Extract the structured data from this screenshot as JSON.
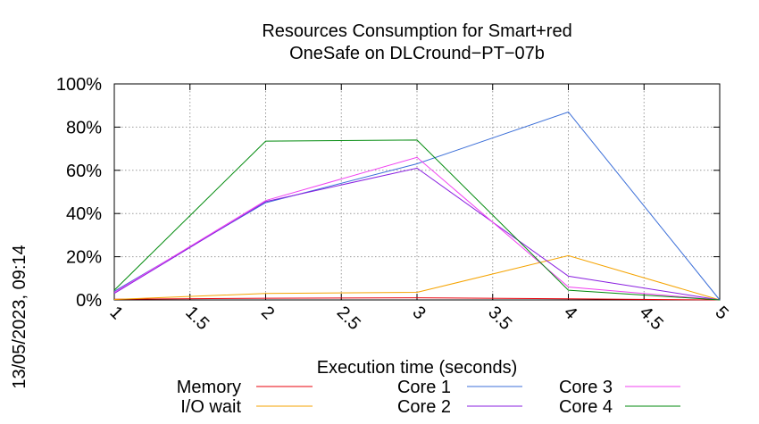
{
  "chart_data": {
    "type": "line",
    "title_lines": [
      "Resources Consumption for Smart+red",
      "OneSafe on DLCround−PT−07b"
    ],
    "xlabel": "Execution time (seconds)",
    "ylabel": "",
    "side_label": "13/05/2023, 09:14",
    "xlim": [
      1,
      5
    ],
    "ylim": [
      0,
      100
    ],
    "x_ticks": [
      1,
      1.5,
      2,
      2.5,
      3,
      3.5,
      4,
      4.5,
      5
    ],
    "x_tick_labels": [
      "1",
      "1.5",
      "2",
      "2.5",
      "3",
      "3.5",
      "4",
      "4.5",
      "5"
    ],
    "y_ticks": [
      0,
      20,
      40,
      60,
      80,
      100
    ],
    "y_tick_labels": [
      "0%",
      "20%",
      "40%",
      "60%",
      "80%",
      "100%"
    ],
    "grid": true,
    "legend_position": "bottom",
    "x": [
      1,
      2,
      3,
      4,
      5
    ],
    "series": [
      {
        "name": "Memory",
        "color": "#e8000b",
        "values": [
          0.3,
          0.8,
          1.0,
          0.5,
          0
        ]
      },
      {
        "name": "I/O wait",
        "color": "#f5a300",
        "values": [
          0.2,
          3.0,
          3.5,
          20.5,
          0
        ]
      },
      {
        "name": "Core 1",
        "color": "#3c6fd8",
        "values": [
          4,
          45,
          63,
          87,
          0
        ]
      },
      {
        "name": "Core 2",
        "color": "#8a1fe0",
        "values": [
          3,
          45.5,
          61,
          11,
          0
        ]
      },
      {
        "name": "Core 3",
        "color": "#f040f0",
        "values": [
          3.5,
          46,
          66,
          6,
          0
        ]
      },
      {
        "name": "Core 4",
        "color": "#008a0c",
        "values": [
          4.5,
          73.5,
          74,
          4.5,
          0
        ]
      }
    ]
  }
}
